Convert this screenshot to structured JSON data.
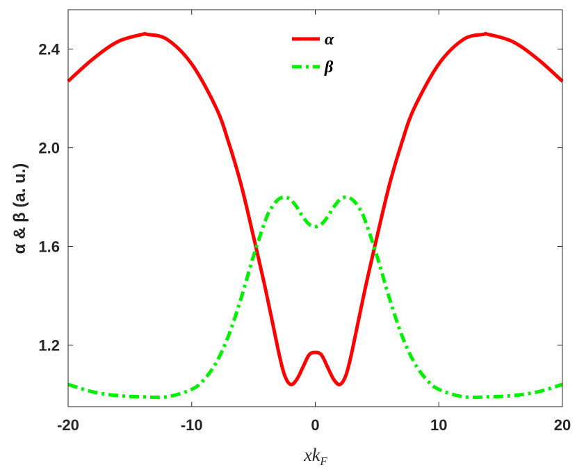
{
  "chart_data": {
    "type": "line",
    "xlabel_var": "x",
    "xlabel_k": "k",
    "xlabel_sub": "F",
    "ylabel": "α & β (a. u.)",
    "xlim": [
      -20,
      20
    ],
    "ylim": [
      0.95,
      2.56
    ],
    "xticks": [
      -20,
      -10,
      0,
      10,
      20
    ],
    "xtick_labels": [
      "-20",
      "-10",
      "0",
      "10",
      "20"
    ],
    "yticks": [
      1.2,
      1.6,
      2.0,
      2.4
    ],
    "ytick_labels": [
      "1.2",
      "1.6",
      "2.0",
      "2.4"
    ],
    "grid": false,
    "legend_position": "top-center",
    "series": [
      {
        "name": "α",
        "color": "#ff0000",
        "style": "solid",
        "x": [
          -20,
          -18,
          -16,
          -14,
          -13.6,
          -12,
          -10,
          -8,
          -7,
          -6,
          -5,
          -4,
          -3,
          -2.5,
          -2,
          -1.5,
          -1,
          -0.5,
          0,
          0.5,
          1,
          1.5,
          2,
          2.5,
          3,
          4,
          5,
          6,
          7,
          8,
          10,
          12,
          13.6,
          14,
          16,
          18,
          20
        ],
        "y": [
          2.27,
          2.36,
          2.43,
          2.46,
          2.46,
          2.44,
          2.34,
          2.16,
          2.02,
          1.85,
          1.64,
          1.42,
          1.18,
          1.08,
          1.04,
          1.06,
          1.11,
          1.16,
          1.17,
          1.16,
          1.11,
          1.06,
          1.04,
          1.08,
          1.18,
          1.42,
          1.64,
          1.85,
          2.02,
          2.16,
          2.34,
          2.44,
          2.46,
          2.46,
          2.43,
          2.36,
          2.27
        ]
      },
      {
        "name": "β",
        "color": "#00ee00",
        "style": "dashdot",
        "x": [
          -20,
          -18,
          -16,
          -14,
          -12,
          -10,
          -9,
          -8,
          -7,
          -6,
          -5,
          -4,
          -3.5,
          -3,
          -2.5,
          -2,
          -1.5,
          -1,
          -0.5,
          0,
          0.5,
          1,
          1.5,
          2,
          2.5,
          3,
          3.5,
          4,
          5,
          6,
          7,
          8,
          9,
          10,
          12,
          14,
          16,
          18,
          20
        ],
        "y": [
          1.04,
          1.01,
          0.995,
          0.99,
          0.99,
          1.02,
          1.06,
          1.13,
          1.24,
          1.39,
          1.56,
          1.71,
          1.76,
          1.79,
          1.8,
          1.79,
          1.76,
          1.72,
          1.69,
          1.68,
          1.69,
          1.72,
          1.76,
          1.79,
          1.8,
          1.79,
          1.76,
          1.71,
          1.56,
          1.39,
          1.24,
          1.13,
          1.06,
          1.02,
          0.99,
          0.99,
          0.995,
          1.01,
          1.04
        ]
      }
    ]
  }
}
